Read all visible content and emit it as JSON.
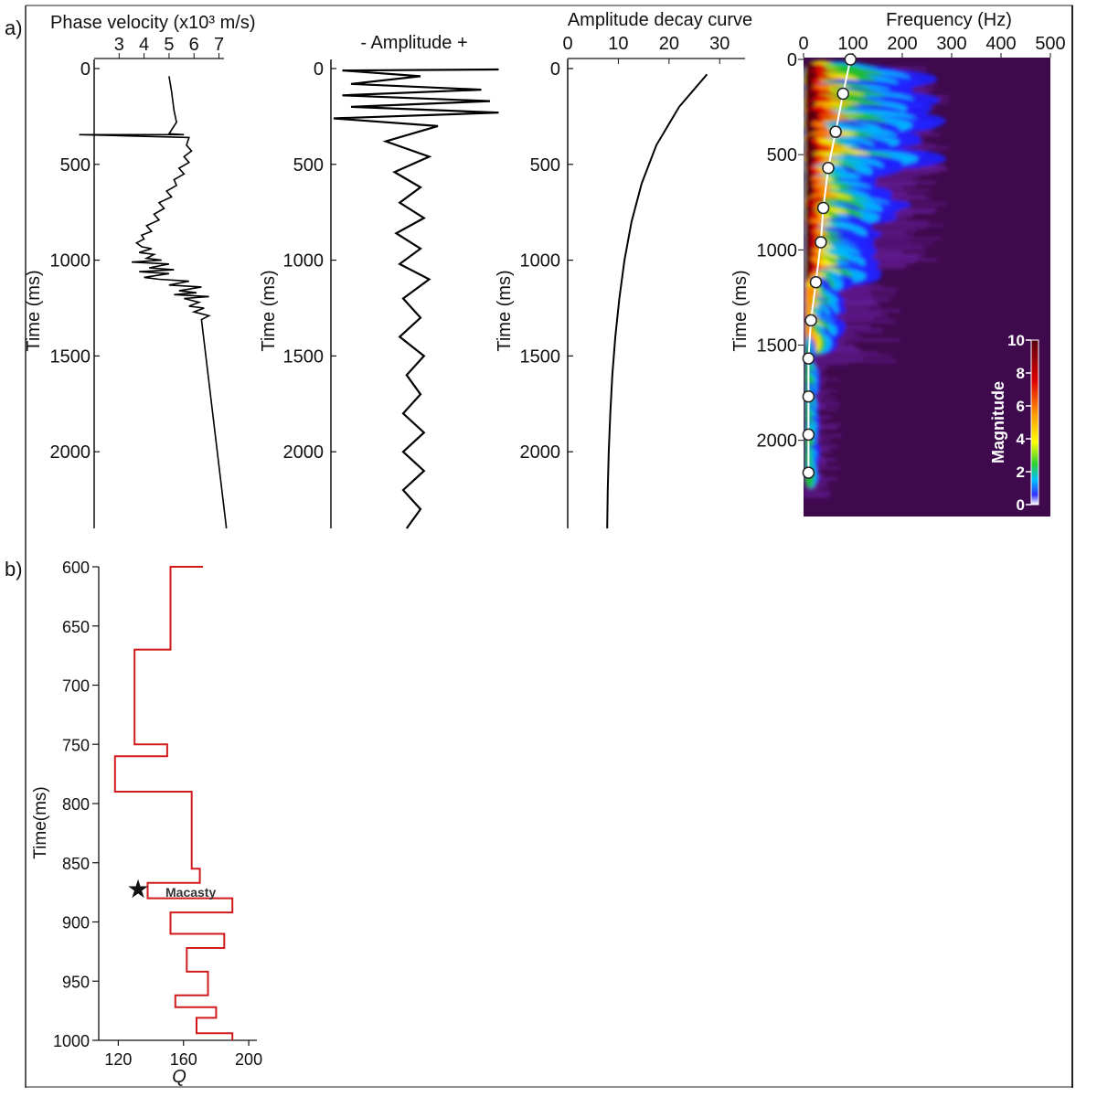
{
  "panel_a_label": "a)",
  "panel_b_label": "b)",
  "chart_data": [
    {
      "type": "line",
      "panel": "velocity",
      "title": "Phase velocity (x10³ m/s)",
      "xlabel": "Phase velocity (x10³ m/s)",
      "ylabel": "Time (ms)",
      "xlim": [
        2,
        7.2
      ],
      "ylim": [
        0,
        2400
      ],
      "xticks": [
        3,
        4,
        5,
        6,
        7
      ],
      "yticks": [
        0,
        500,
        1000,
        1500,
        2000
      ],
      "series": [
        {
          "x": [
            5.0,
            5.1,
            5.2,
            5.3,
            5.1,
            5.0,
            5.6,
            1.4,
            5.8,
            5.7,
            5.9,
            5.6,
            5.8,
            5.4,
            5.6,
            5.2,
            5.3,
            4.9,
            5.1,
            4.6,
            4.8,
            4.4,
            4.6,
            4.1,
            4.3,
            3.9,
            4.0,
            3.7,
            3.9,
            4.3,
            3.8,
            4.4,
            4.1,
            4.7,
            3.5,
            5.0,
            4.2,
            5.2,
            3.8,
            5.0,
            4.0,
            4.6,
            5.8,
            5.0,
            6.3,
            5.4,
            6.1,
            5.2,
            6.6,
            5.6,
            6.2,
            5.8,
            6.4,
            6.0,
            6.6,
            6.3,
            7.3
          ],
          "y": [
            40,
            120,
            220,
            280,
            320,
            340,
            345,
            345,
            360,
            400,
            430,
            460,
            490,
            520,
            550,
            580,
            610,
            640,
            670,
            700,
            730,
            760,
            790,
            820,
            850,
            870,
            890,
            910,
            930,
            940,
            960,
            970,
            990,
            1000,
            1010,
            1020,
            1040,
            1050,
            1060,
            1070,
            1090,
            1100,
            1110,
            1130,
            1140,
            1160,
            1170,
            1180,
            1190,
            1200,
            1220,
            1240,
            1250,
            1270,
            1290,
            1310,
            2400
          ]
        }
      ]
    },
    {
      "type": "line",
      "panel": "trace",
      "xlabel": "- Amplitude +",
      "ylabel": "Time (ms)",
      "ylim": [
        0,
        2400
      ],
      "yticks": [
        0,
        500,
        1000,
        1500,
        2000
      ],
      "series": [
        {
          "x": [
            0.95,
            0.05,
            0.5,
            0.1,
            0.85,
            0.05,
            0.9,
            0.1,
            0.95,
            0.0,
            0.6,
            0.3,
            0.55,
            0.35,
            0.5,
            0.38,
            0.52,
            0.36,
            0.5,
            0.38,
            0.55,
            0.4,
            0.5,
            0.38,
            0.52,
            0.42,
            0.5,
            0.4,
            0.52,
            0.4,
            0.52,
            0.4,
            0.5,
            0.42
          ],
          "y": [
            5,
            10,
            40,
            80,
            110,
            140,
            170,
            200,
            230,
            260,
            300,
            380,
            460,
            540,
            620,
            700,
            780,
            860,
            940,
            1020,
            1100,
            1200,
            1300,
            1400,
            1500,
            1600,
            1700,
            1800,
            1900,
            2000,
            2100,
            2200,
            2300,
            2400
          ]
        }
      ]
    },
    {
      "type": "line",
      "panel": "decay",
      "title": "Amplitude decay curve",
      "ylabel": "Time (ms)",
      "xlim": [
        0,
        35
      ],
      "ylim": [
        0,
        2400
      ],
      "xticks": [
        0,
        10,
        20,
        30
      ],
      "yticks": [
        0,
        500,
        1000,
        1500,
        2000
      ],
      "series": [
        {
          "x": [
            27.5,
            22.0,
            17.5,
            14.6,
            12.6,
            11.2,
            10.2,
            9.4,
            8.8,
            8.4,
            8.1,
            7.9,
            7.8
          ],
          "y": [
            30,
            200,
            400,
            600,
            800,
            1000,
            1200,
            1400,
            1600,
            1800,
            2000,
            2200,
            2400
          ]
        }
      ]
    },
    {
      "type": "heatmap",
      "panel": "frequency",
      "xlabel": "Frequency (Hz)",
      "ylabel": "Time (ms)",
      "xlim": [
        0,
        500
      ],
      "ylim": [
        0,
        2400
      ],
      "xticks": [
        0,
        100,
        200,
        300,
        400,
        500
      ],
      "yticks": [
        0,
        500,
        1000,
        1500,
        2000
      ],
      "colorbar": {
        "label": "Magnitude",
        "min": 0,
        "max": 10,
        "ticks": [
          0,
          2,
          4,
          6,
          8,
          10
        ]
      },
      "peak_frequency": {
        "freq": [
          95,
          80,
          65,
          50,
          40,
          35,
          25,
          15,
          10,
          10,
          10,
          10
        ],
        "time": [
          0,
          180,
          380,
          570,
          780,
          960,
          1170,
          1370,
          1570,
          1770,
          1970,
          2170
        ]
      }
    },
    {
      "type": "line",
      "panel": "q",
      "xlabel": "Q",
      "ylabel": "Time(ms)",
      "xlim": [
        108,
        205
      ],
      "ylim": [
        600,
        1000
      ],
      "xticks": [
        120,
        160,
        200
      ],
      "yticks": [
        600,
        650,
        700,
        750,
        800,
        850,
        900,
        950,
        1000
      ],
      "annotation": "Macasty",
      "annotation_y": 873,
      "series": [
        {
          "x": [
            172,
            152,
            152,
            130,
            130,
            150,
            150,
            118,
            118,
            165,
            165,
            170,
            170,
            138,
            138,
            190,
            190,
            152,
            152,
            185,
            185,
            162,
            162,
            175,
            175,
            155,
            155,
            180,
            180,
            168,
            168,
            190,
            190
          ],
          "y": [
            600,
            600,
            670,
            670,
            750,
            750,
            760,
            760,
            790,
            790,
            855,
            855,
            867,
            867,
            880,
            880,
            892,
            892,
            910,
            910,
            922,
            922,
            942,
            942,
            962,
            962,
            972,
            972,
            981,
            981,
            994,
            994,
            1000
          ]
        }
      ]
    }
  ]
}
